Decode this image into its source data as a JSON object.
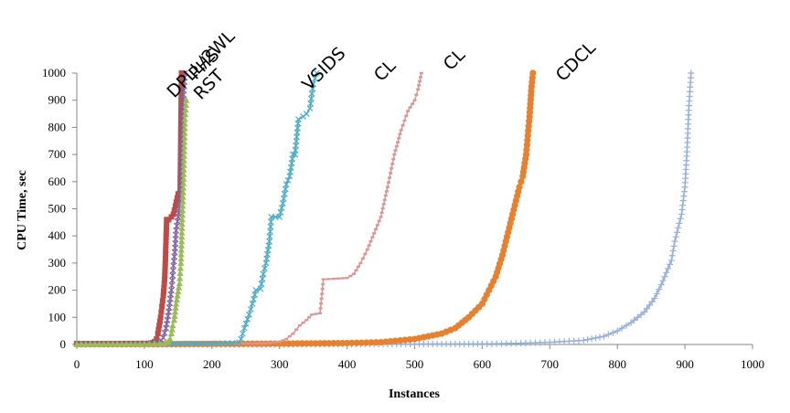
{
  "chart_data": {
    "type": "line",
    "title": "",
    "xlabel": "Instances",
    "ylabel": "CPU Time, sec",
    "xlim": [
      0,
      1000
    ],
    "ylim": [
      0,
      1000
    ],
    "x_ticks": [
      0,
      100,
      200,
      300,
      400,
      500,
      600,
      700,
      800,
      900,
      1000
    ],
    "y_ticks": [
      0,
      100,
      200,
      300,
      400,
      500,
      600,
      700,
      800,
      900,
      1000
    ],
    "grid": false,
    "legend": "none",
    "series": [
      {
        "name": "DPLL/2WL",
        "color": "#be4b48",
        "marker": "square",
        "points": [
          [
            0,
            3
          ],
          [
            50,
            3
          ],
          [
            100,
            4
          ],
          [
            110,
            6
          ],
          [
            115,
            10
          ],
          [
            118,
            20
          ],
          [
            120,
            40
          ],
          [
            122,
            70
          ],
          [
            124,
            100
          ],
          [
            126,
            140
          ],
          [
            128,
            180
          ],
          [
            130,
            240
          ],
          [
            131,
            300
          ],
          [
            133,
            460
          ],
          [
            136,
            460
          ],
          [
            140,
            470
          ],
          [
            143,
            480
          ],
          [
            146,
            510
          ],
          [
            150,
            555
          ],
          [
            153,
            560
          ],
          [
            155,
            1000
          ],
          [
            156,
            1000
          ]
        ]
      },
      {
        "name": "PHS",
        "color": "#7e62a1",
        "marker": "x",
        "points": [
          [
            0,
            2
          ],
          [
            50,
            2
          ],
          [
            100,
            3
          ],
          [
            115,
            5
          ],
          [
            120,
            8
          ],
          [
            125,
            15
          ],
          [
            128,
            25
          ],
          [
            132,
            60
          ],
          [
            136,
            120
          ],
          [
            140,
            200
          ],
          [
            143,
            290
          ],
          [
            145,
            340
          ],
          [
            147,
            420
          ],
          [
            150,
            470
          ],
          [
            153,
            530
          ],
          [
            155,
            740
          ],
          [
            158,
            920
          ],
          [
            160,
            1000
          ]
        ]
      },
      {
        "name": "RST",
        "color": "#9bbb59",
        "marker": "triangle",
        "points": [
          [
            0,
            1
          ],
          [
            100,
            2
          ],
          [
            130,
            4
          ],
          [
            135,
            10
          ],
          [
            138,
            20
          ],
          [
            140,
            40
          ],
          [
            142,
            70
          ],
          [
            144,
            90
          ],
          [
            147,
            150
          ],
          [
            150,
            195
          ],
          [
            152,
            225
          ],
          [
            154,
            300
          ],
          [
            156,
            460
          ],
          [
            158,
            610
          ],
          [
            160,
            830
          ],
          [
            162,
            900
          ]
        ]
      },
      {
        "name": "VSIDS",
        "color": "#4bacc6",
        "marker": "x",
        "points": [
          [
            0,
            2
          ],
          [
            100,
            2
          ],
          [
            200,
            3
          ],
          [
            230,
            5
          ],
          [
            240,
            8
          ],
          [
            243,
            20
          ],
          [
            248,
            60
          ],
          [
            255,
            110
          ],
          [
            260,
            150
          ],
          [
            265,
            200
          ],
          [
            272,
            205
          ],
          [
            276,
            260
          ],
          [
            280,
            300
          ],
          [
            285,
            380
          ],
          [
            288,
            470
          ],
          [
            300,
            470
          ],
          [
            305,
            520
          ],
          [
            310,
            590
          ],
          [
            315,
            620
          ],
          [
            320,
            700
          ],
          [
            323,
            700
          ],
          [
            328,
            830
          ],
          [
            335,
            840
          ],
          [
            340,
            850
          ],
          [
            345,
            870
          ],
          [
            350,
            960
          ],
          [
            355,
            1000
          ]
        ]
      },
      {
        "name": "CL",
        "color": "#d99694",
        "marker": "dash",
        "points": [
          [
            0,
            2
          ],
          [
            200,
            2
          ],
          [
            280,
            4
          ],
          [
            300,
            10
          ],
          [
            310,
            20
          ],
          [
            320,
            40
          ],
          [
            330,
            70
          ],
          [
            340,
            90
          ],
          [
            348,
            110
          ],
          [
            360,
            115
          ],
          [
            365,
            240
          ],
          [
            380,
            242
          ],
          [
            400,
            245
          ],
          [
            410,
            260
          ],
          [
            420,
            300
          ],
          [
            430,
            350
          ],
          [
            440,
            410
          ],
          [
            450,
            470
          ],
          [
            460,
            580
          ],
          [
            470,
            700
          ],
          [
            480,
            790
          ],
          [
            490,
            860
          ],
          [
            500,
            900
          ],
          [
            505,
            940
          ],
          [
            510,
            1000
          ]
        ]
      },
      {
        "name": "CL",
        "color": "#e7812f",
        "marker": "circle",
        "points": [
          [
            0,
            1
          ],
          [
            100,
            1
          ],
          [
            200,
            2
          ],
          [
            300,
            3
          ],
          [
            400,
            5
          ],
          [
            450,
            8
          ],
          [
            500,
            20
          ],
          [
            540,
            40
          ],
          [
            560,
            60
          ],
          [
            580,
            100
          ],
          [
            600,
            150
          ],
          [
            610,
            200
          ],
          [
            620,
            250
          ],
          [
            630,
            330
          ],
          [
            640,
            430
          ],
          [
            650,
            530
          ],
          [
            655,
            580
          ],
          [
            660,
            620
          ],
          [
            665,
            700
          ],
          [
            670,
            840
          ],
          [
            673,
            950
          ],
          [
            675,
            1000
          ]
        ]
      },
      {
        "name": "CDCL",
        "color": "#95aedb",
        "marker": "plus",
        "points": [
          [
            0,
            0
          ],
          [
            200,
            0
          ],
          [
            400,
            1
          ],
          [
            600,
            2
          ],
          [
            650,
            4
          ],
          [
            700,
            8
          ],
          [
            750,
            15
          ],
          [
            780,
            30
          ],
          [
            800,
            50
          ],
          [
            820,
            80
          ],
          [
            840,
            120
          ],
          [
            855,
            170
          ],
          [
            865,
            220
          ],
          [
            875,
            280
          ],
          [
            880,
            310
          ],
          [
            885,
            380
          ],
          [
            890,
            430
          ],
          [
            895,
            480
          ],
          [
            900,
            580
          ],
          [
            903,
            710
          ],
          [
            906,
            880
          ],
          [
            909,
            1000
          ]
        ]
      }
    ],
    "series_labels": [
      {
        "text": "DPLL/2WL",
        "anchor_x": 155,
        "anchor_y": 1000,
        "dx": -8,
        "dy": 28
      },
      {
        "text": "PHS",
        "anchor_x": 160,
        "anchor_y": 1000,
        "dx": 12,
        "dy": 8
      },
      {
        "text": "RST",
        "anchor_x": 162,
        "anchor_y": 1000,
        "dx": 16,
        "dy": 30
      },
      {
        "text": "VSIDS",
        "anchor_x": 355,
        "anchor_y": 1000,
        "dx": -8,
        "dy": 20
      },
      {
        "text": "CL",
        "anchor_x": 510,
        "anchor_y": 1000,
        "dx": -44,
        "dy": 10
      },
      {
        "text": "CL",
        "anchor_x": 675,
        "anchor_y": 1000,
        "dx": -90,
        "dy": -2
      },
      {
        "text": "CDCL",
        "anchor_x": 909,
        "anchor_y": 1000,
        "dx": -140,
        "dy": 10
      }
    ]
  }
}
